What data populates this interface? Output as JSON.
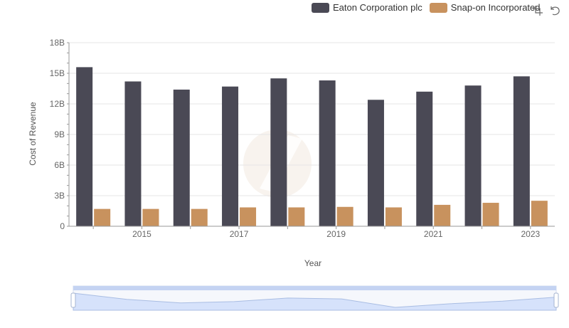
{
  "chart_data": {
    "type": "bar",
    "title": "",
    "xlabel": "Year",
    "ylabel": "Cost of Revenue",
    "categories": [
      "2014",
      "2015",
      "2016",
      "2017",
      "2018",
      "2019",
      "2020",
      "2021",
      "2022",
      "2023"
    ],
    "x_tick_labels": [
      "2015",
      "2017",
      "2019",
      "2021",
      "2023"
    ],
    "y_ticks": [
      "0",
      "3B",
      "6B",
      "9B",
      "12B",
      "15B",
      "18B"
    ],
    "ylim": [
      0,
      18
    ],
    "y_unit": "B",
    "grid": true,
    "legend_position": "top-right",
    "series": [
      {
        "name": "Eaton Corporation plc",
        "color": "#4a4955",
        "values": [
          15.6,
          14.2,
          13.4,
          13.7,
          14.5,
          14.3,
          12.4,
          13.2,
          13.8,
          14.7
        ]
      },
      {
        "name": "Snap-on Incorporated",
        "color": "#c8925e",
        "values": [
          1.7,
          1.7,
          1.7,
          1.85,
          1.85,
          1.9,
          1.85,
          2.1,
          2.3,
          2.5
        ]
      }
    ]
  },
  "legend": {
    "items": [
      {
        "label": "Eaton Corporation plc",
        "color": "#4a4955"
      },
      {
        "label": "Snap-on Incorporated",
        "color": "#c8925e"
      }
    ]
  },
  "toolbox": {
    "icons": [
      "zoom-icon",
      "restore-icon"
    ]
  },
  "data_zoom": {
    "start_fraction": 0,
    "end_fraction": 1
  }
}
